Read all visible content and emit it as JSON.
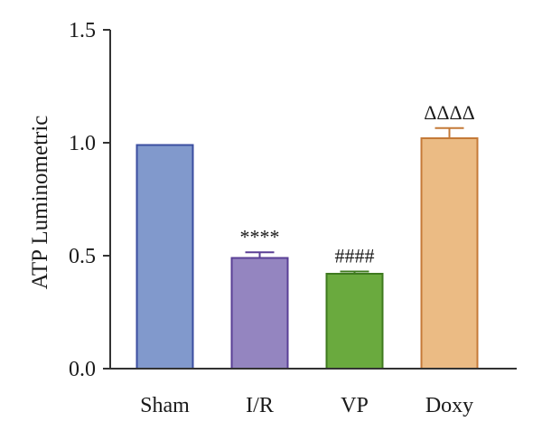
{
  "chart_data": {
    "type": "bar",
    "title": "",
    "xlabel": "",
    "ylabel": "ATP Luminometric",
    "ylim": [
      0.0,
      1.5
    ],
    "yticks": [
      "0.0",
      "0.5",
      "1.0",
      "1.5"
    ],
    "ytick_values": [
      0.0,
      0.5,
      1.0,
      1.5
    ],
    "categories": [
      "Sham",
      "I/R",
      "VP",
      "Doxy"
    ],
    "values": [
      0.99,
      0.49,
      0.42,
      1.02
    ],
    "errors": [
      0.0,
      0.025,
      0.01,
      0.045
    ],
    "significance": [
      "",
      "****",
      "####",
      "ΔΔΔΔ"
    ],
    "colors": {
      "fill": [
        "#8199cc",
        "#9485c0",
        "#6aaa3e",
        "#ebbb84"
      ],
      "stroke": [
        "#3b4ea0",
        "#5a3f96",
        "#3f7a1f",
        "#c47a38"
      ]
    },
    "grid": false,
    "legend": "none"
  }
}
